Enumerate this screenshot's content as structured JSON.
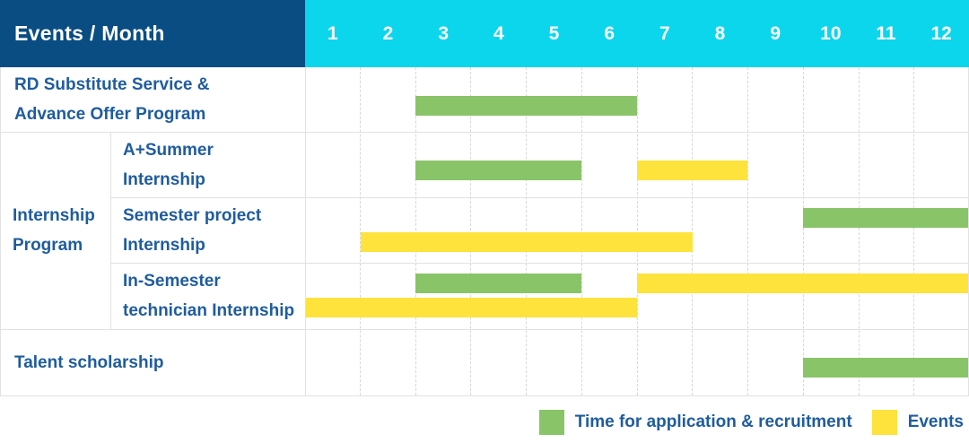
{
  "header": {
    "events_month_label": "Events / Month",
    "months": [
      "1",
      "2",
      "3",
      "4",
      "5",
      "6",
      "7",
      "8",
      "9",
      "10",
      "11",
      "12"
    ]
  },
  "group_label": {
    "text": "Internship Program",
    "lines": [
      "Internship",
      "Program"
    ]
  },
  "legend": {
    "items": [
      {
        "key": "application",
        "label": "Time for application & recruitment",
        "color": "#8ac468"
      },
      {
        "key": "events",
        "label": "Events",
        "color": "#fde33c"
      }
    ]
  },
  "colors": {
    "header_navy": "#0a4d82",
    "header_cyan": "#0cd6ec",
    "bar_green": "#8ac468",
    "bar_yellow": "#fde33c",
    "label_blue": "#1f5c9e",
    "grid_line_dashed": "#d7d7d7",
    "row_line": "#e2e2e2"
  },
  "chart_data": {
    "type": "bar",
    "subtype": "gantt-schedule",
    "title": "Events / Month",
    "x": {
      "label": "Month",
      "ticks": [
        1,
        2,
        3,
        4,
        5,
        6,
        7,
        8,
        9,
        10,
        11,
        12
      ],
      "range": [
        1,
        12
      ]
    },
    "grid": "dashed-vertical-month-lines",
    "legend_position": "bottom-right",
    "series_legend": [
      {
        "name": "Time for application & recruitment",
        "color": "#8ac468"
      },
      {
        "name": "Events",
        "color": "#fde33c"
      }
    ],
    "rows": [
      {
        "group": "",
        "label": "RD Substitute Service & Advance Offer Program",
        "label_lines": [
          "RD Substitute Service &",
          "Advance Offer Program"
        ],
        "lanes": 1,
        "bars": [
          {
            "series": "Time for application & recruitment",
            "start_month": 3,
            "end_month": 6,
            "lane": 0
          }
        ]
      },
      {
        "group": "Internship Program",
        "label": "A+Summer Internship",
        "label_lines": [
          "A+Summer",
          "Internship"
        ],
        "lanes": 1,
        "bars": [
          {
            "series": "Time for application & recruitment",
            "start_month": 3,
            "end_month": 5,
            "lane": 0
          },
          {
            "series": "Events",
            "start_month": 7,
            "end_month": 8,
            "lane": 0
          }
        ]
      },
      {
        "group": "Internship Program",
        "label": "Semester project Internship",
        "label_lines": [
          "Semester project",
          "Internship"
        ],
        "lanes": 2,
        "bars": [
          {
            "series": "Time for application & recruitment",
            "start_month": 10,
            "end_month": 12,
            "lane": 0
          },
          {
            "series": "Events",
            "start_month": 2,
            "end_month": 7,
            "lane": 1
          }
        ]
      },
      {
        "group": "Internship Program",
        "label": "In-Semester technician Internship",
        "label_lines": [
          "In-Semester",
          "technician Internship"
        ],
        "lanes": 2,
        "bars": [
          {
            "series": "Time for application & recruitment",
            "start_month": 3,
            "end_month": 5,
            "lane": 0
          },
          {
            "series": "Events",
            "start_month": 7,
            "end_month": 12,
            "lane": 0
          },
          {
            "series": "Events",
            "start_month": 1,
            "end_month": 6,
            "lane": 1
          }
        ]
      },
      {
        "group": "",
        "label": "Talent scholarship",
        "label_lines": [
          "Talent scholarship"
        ],
        "lanes": 1,
        "bars": [
          {
            "series": "Time for application & recruitment",
            "start_month": 10,
            "end_month": 12,
            "lane": 0
          }
        ]
      }
    ]
  }
}
